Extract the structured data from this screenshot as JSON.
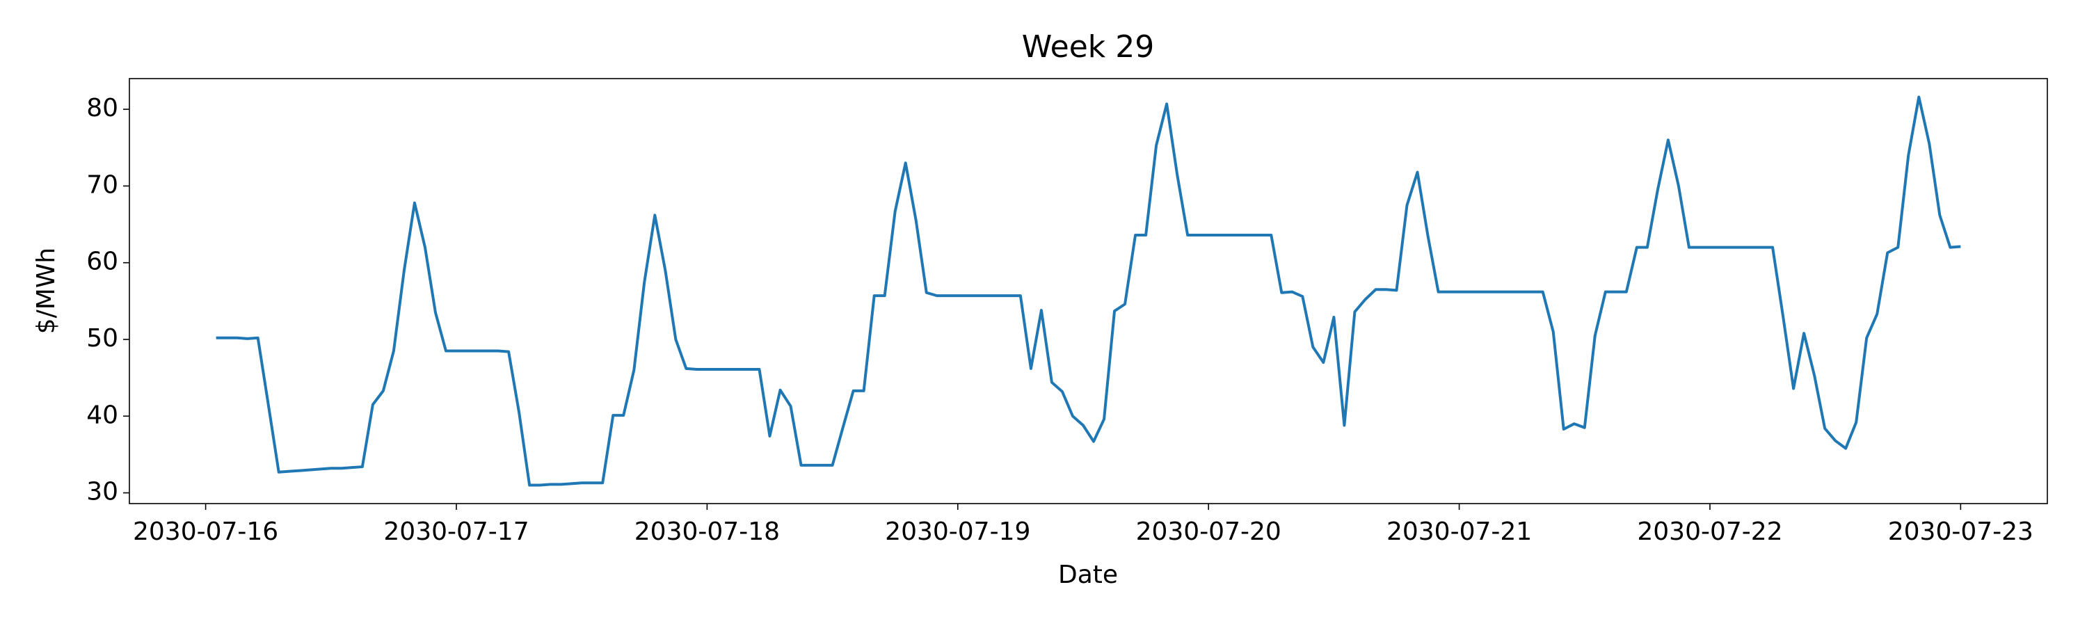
{
  "chart_data": {
    "type": "line",
    "title": "Week 29",
    "x_label": "Date",
    "y_label": "$/MWh",
    "x": [
      "2030-07-16 01:00",
      "2030-07-16 02:00",
      "2030-07-16 03:00",
      "2030-07-16 04:00",
      "2030-07-16 05:00",
      "2030-07-16 06:00",
      "2030-07-16 07:00",
      "2030-07-16 08:00",
      "2030-07-16 09:00",
      "2030-07-16 10:00",
      "2030-07-16 11:00",
      "2030-07-16 12:00",
      "2030-07-16 13:00",
      "2030-07-16 14:00",
      "2030-07-16 15:00",
      "2030-07-16 16:00",
      "2030-07-16 17:00",
      "2030-07-16 18:00",
      "2030-07-16 19:00",
      "2030-07-16 20:00",
      "2030-07-16 21:00",
      "2030-07-16 22:00",
      "2030-07-16 23:00",
      "2030-07-17 00:00",
      "2030-07-17 01:00",
      "2030-07-17 02:00",
      "2030-07-17 03:00",
      "2030-07-17 04:00",
      "2030-07-17 05:00",
      "2030-07-17 06:00",
      "2030-07-17 07:00",
      "2030-07-17 08:00",
      "2030-07-17 09:00",
      "2030-07-17 10:00",
      "2030-07-17 11:00",
      "2030-07-17 12:00",
      "2030-07-17 13:00",
      "2030-07-17 14:00",
      "2030-07-17 15:00",
      "2030-07-17 16:00",
      "2030-07-17 17:00",
      "2030-07-17 18:00",
      "2030-07-17 19:00",
      "2030-07-17 20:00",
      "2030-07-17 21:00",
      "2030-07-17 22:00",
      "2030-07-17 23:00",
      "2030-07-18 00:00",
      "2030-07-18 01:00",
      "2030-07-18 02:00",
      "2030-07-18 03:00",
      "2030-07-18 04:00",
      "2030-07-18 05:00",
      "2030-07-18 06:00",
      "2030-07-18 07:00",
      "2030-07-18 08:00",
      "2030-07-18 09:00",
      "2030-07-18 10:00",
      "2030-07-18 11:00",
      "2030-07-18 12:00",
      "2030-07-18 13:00",
      "2030-07-18 14:00",
      "2030-07-18 15:00",
      "2030-07-18 16:00",
      "2030-07-18 17:00",
      "2030-07-18 18:00",
      "2030-07-18 19:00",
      "2030-07-18 20:00",
      "2030-07-18 21:00",
      "2030-07-18 22:00",
      "2030-07-18 23:00",
      "2030-07-19 00:00",
      "2030-07-19 01:00",
      "2030-07-19 02:00",
      "2030-07-19 03:00",
      "2030-07-19 04:00",
      "2030-07-19 05:00",
      "2030-07-19 06:00",
      "2030-07-19 07:00",
      "2030-07-19 08:00",
      "2030-07-19 09:00",
      "2030-07-19 10:00",
      "2030-07-19 11:00",
      "2030-07-19 12:00",
      "2030-07-19 13:00",
      "2030-07-19 14:00",
      "2030-07-19 15:00",
      "2030-07-19 16:00",
      "2030-07-19 17:00",
      "2030-07-19 18:00",
      "2030-07-19 19:00",
      "2030-07-19 20:00",
      "2030-07-19 21:00",
      "2030-07-19 22:00",
      "2030-07-19 23:00",
      "2030-07-20 00:00",
      "2030-07-20 01:00",
      "2030-07-20 02:00",
      "2030-07-20 03:00",
      "2030-07-20 04:00",
      "2030-07-20 05:00",
      "2030-07-20 06:00",
      "2030-07-20 07:00",
      "2030-07-20 08:00",
      "2030-07-20 09:00",
      "2030-07-20 10:00",
      "2030-07-20 11:00",
      "2030-07-20 12:00",
      "2030-07-20 13:00",
      "2030-07-20 14:00",
      "2030-07-20 15:00",
      "2030-07-20 16:00",
      "2030-07-20 17:00",
      "2030-07-20 18:00",
      "2030-07-20 19:00",
      "2030-07-20 20:00",
      "2030-07-20 21:00",
      "2030-07-20 22:00",
      "2030-07-20 23:00",
      "2030-07-21 00:00",
      "2030-07-21 01:00",
      "2030-07-21 02:00",
      "2030-07-21 03:00",
      "2030-07-21 04:00",
      "2030-07-21 05:00",
      "2030-07-21 06:00",
      "2030-07-21 07:00",
      "2030-07-21 08:00",
      "2030-07-21 09:00",
      "2030-07-21 10:00",
      "2030-07-21 11:00",
      "2030-07-21 12:00",
      "2030-07-21 13:00",
      "2030-07-21 14:00",
      "2030-07-21 15:00",
      "2030-07-21 16:00",
      "2030-07-21 17:00",
      "2030-07-21 18:00",
      "2030-07-21 19:00",
      "2030-07-21 20:00",
      "2030-07-21 21:00",
      "2030-07-21 22:00",
      "2030-07-21 23:00",
      "2030-07-22 00:00",
      "2030-07-22 01:00",
      "2030-07-22 02:00",
      "2030-07-22 03:00",
      "2030-07-22 04:00",
      "2030-07-22 05:00",
      "2030-07-22 06:00",
      "2030-07-22 07:00",
      "2030-07-22 08:00",
      "2030-07-22 09:00",
      "2030-07-22 10:00",
      "2030-07-22 11:00",
      "2030-07-22 12:00",
      "2030-07-22 13:00",
      "2030-07-22 14:00",
      "2030-07-22 15:00",
      "2030-07-22 16:00",
      "2030-07-22 17:00",
      "2030-07-22 18:00",
      "2030-07-22 19:00",
      "2030-07-22 20:00",
      "2030-07-22 21:00",
      "2030-07-22 22:00",
      "2030-07-22 23:00",
      "2030-07-23 00:00"
    ],
    "series": [
      {
        "color": "#1f77b4",
        "values": [
          50.2,
          50.2,
          50.2,
          50.1,
          50.2,
          41.5,
          32.7,
          32.8,
          32.9,
          33.0,
          33.1,
          33.2,
          33.2,
          33.3,
          33.4,
          41.5,
          43.3,
          48.5,
          59,
          67.8,
          62,
          53.5,
          48.5,
          48.5,
          48.5,
          48.5,
          48.5,
          48.5,
          48.4,
          40.5,
          31.0,
          31.0,
          31.1,
          31.1,
          31.2,
          31.3,
          31.3,
          31.3,
          40.1,
          40.1,
          46,
          57.5,
          66.2,
          59,
          50,
          46.2,
          46.1,
          46.1,
          46.1,
          46.1,
          46.1,
          46.1,
          46.1,
          37.4,
          43.4,
          41.3,
          33.6,
          33.6,
          33.6,
          33.6,
          38.5,
          43.3,
          43.3,
          55.7,
          55.7,
          66.7,
          73,
          65.5,
          56.1,
          55.7,
          55.7,
          55.7,
          55.7,
          55.7,
          55.7,
          55.7,
          55.7,
          55.7,
          46.2,
          53.8,
          44.4,
          43.2,
          40,
          38.8,
          36.7,
          39.6,
          53.7,
          54.6,
          63.6,
          63.6,
          75.3,
          80.7,
          71.5,
          63.6,
          63.6,
          63.6,
          63.6,
          63.6,
          63.6,
          63.6,
          63.6,
          63.6,
          56.1,
          56.2,
          55.6,
          49,
          47,
          52.9,
          38.8,
          53.6,
          55.2,
          56.5,
          56.5,
          56.4,
          67.5,
          71.8,
          63.5,
          56.2,
          56.2,
          56.2,
          56.2,
          56.2,
          56.2,
          56.2,
          56.2,
          56.2,
          56.2,
          56.2,
          51,
          38.3,
          39,
          38.5,
          50.5,
          56.2,
          56.2,
          56.2,
          62,
          62,
          69.5,
          76,
          70,
          62,
          62,
          62,
          62,
          62,
          62,
          62,
          62,
          62,
          53,
          43.6,
          50.8,
          45.3,
          38.4,
          36.8,
          35.8,
          39.2,
          50.2,
          53.3,
          61.3,
          62,
          74,
          81.6,
          75.5,
          66.2,
          62,
          62.1
        ]
      }
    ],
    "xlim": [
      "2030-07-15 16:42",
      "2030-07-23 08:18"
    ],
    "xticks": [
      "2030-07-16",
      "2030-07-17",
      "2030-07-18",
      "2030-07-19",
      "2030-07-20",
      "2030-07-21",
      "2030-07-22",
      "2030-07-23"
    ],
    "ylim": [
      28.6,
      84.0
    ],
    "yticks": [
      30,
      40,
      50,
      60,
      70,
      80
    ]
  }
}
